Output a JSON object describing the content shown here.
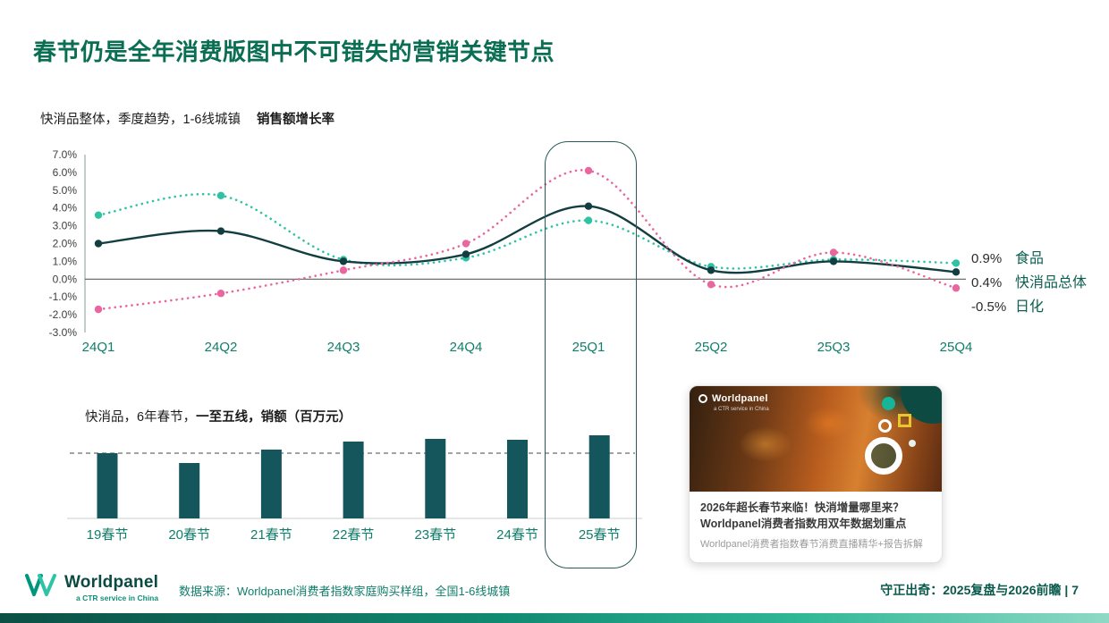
{
  "page": {
    "title": "春节仍是全年消费版图中不可错失的营销关键节点"
  },
  "chart_data": [
    {
      "type": "line",
      "subtitle_plain": "快消品整体，季度趋势，1-6线城镇",
      "subtitle_bold": "销售额增长率",
      "categories": [
        "24Q1",
        "24Q2",
        "24Q3",
        "24Q4",
        "25Q1",
        "25Q2",
        "25Q3",
        "25Q4"
      ],
      "series": [
        {
          "name": "食品",
          "color": "#2fc3a3",
          "style": "dotted",
          "values": [
            3.6,
            4.7,
            1.1,
            1.2,
            3.3,
            0.7,
            1.1,
            0.9
          ],
          "end_label": "0.9%"
        },
        {
          "name": "快消品总体",
          "color": "#133e41",
          "style": "solid",
          "values": [
            2.0,
            2.7,
            1.0,
            1.4,
            4.1,
            0.5,
            1.0,
            0.4
          ],
          "end_label": "0.4%"
        },
        {
          "name": "日化",
          "color": "#e9679e",
          "style": "dotted",
          "values": [
            -1.7,
            -0.8,
            0.5,
            2.0,
            6.1,
            -0.3,
            1.5,
            -0.5
          ],
          "end_label": "-0.5%"
        }
      ],
      "ylim": [
        -3.0,
        7.0
      ],
      "ytick_step": 1.0,
      "grid": "zero-line-only",
      "legend_position": "right-end-labels",
      "highlight_category": "25Q1"
    },
    {
      "type": "bar",
      "subtitle_plain": "快消品，6年春节，",
      "subtitle_bold": "一至五线，销额（百万元）",
      "categories": [
        "19春节",
        "20春节",
        "21春节",
        "22春节",
        "23春节",
        "24春节",
        "25春节"
      ],
      "values": [
        73,
        62,
        77,
        86,
        89,
        88,
        93
      ],
      "ylim": [
        0,
        100
      ],
      "bar_color": "#15565c",
      "reference_line_value": 73,
      "highlight_category": "25春节"
    }
  ],
  "promo_card": {
    "overlay_brand": "Worldpanel",
    "overlay_brand_sub": "a CTR service in China",
    "headline": "2026年超长春节来临！快消增量哪里来？Worldpanel消费者指数用双年数据划重点",
    "subline": "Worldpanel消费者指数春节消费直播精华+报告拆解"
  },
  "footer": {
    "logo_text": "Worldpanel",
    "logo_subtext": "a CTR service in China",
    "source": "数据来源：Worldpanel消费者指数家庭购买样组，全国1-6线城镇",
    "deck_title": "守正出奇：2025复盘与2026前瞻 | 7"
  },
  "colors": {
    "title_green": "#0a6e52",
    "teal_text": "#0f7e6a",
    "series_food": "#2fc3a3",
    "series_total": "#133e41",
    "series_homecare": "#e9679e",
    "bar_fill": "#15565c",
    "footer_gradient_start": "#0c4f45",
    "footer_gradient_end": "#8fd9c6"
  }
}
